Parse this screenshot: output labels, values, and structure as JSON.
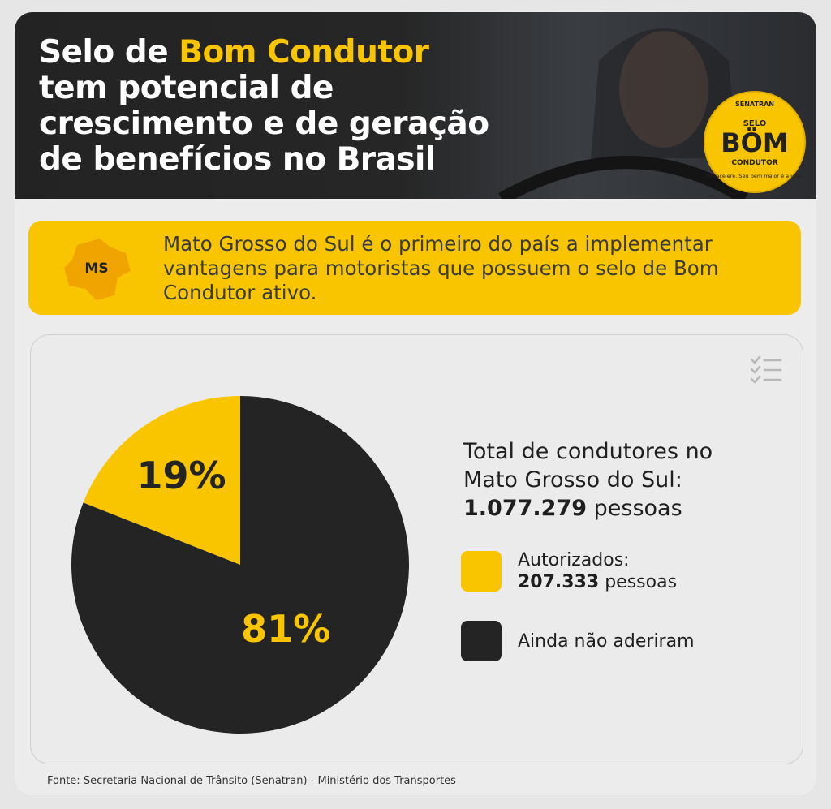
{
  "header": {
    "title": {
      "prefix": "Selo de",
      "highlight": "Bom Condutor",
      "lines": [
        "tem potencial de",
        "crescimento e de geração",
        "de benefícios no Brasil"
      ]
    },
    "badge": {
      "top": "SENATRAN",
      "small": "SELO",
      "big": "BÖM",
      "bottom": "CONDUTOR",
      "motto": "Desacelere. Seu bem maior é a vida."
    }
  },
  "banner": {
    "state": "MS",
    "text": "Mato Grosso do Sul é o primeiro do país a implementar vantagens para motoristas que possuem o selo de Bom Condutor ativo."
  },
  "chart_data": {
    "type": "pie",
    "summary": {
      "lines": [
        "Total de condutores no",
        "Mato Grosso do Sul:"
      ],
      "total": "1.077.279",
      "unit": "pessoas"
    },
    "series": [
      {
        "name": "Autorizados:",
        "color": "#f9c500",
        "values": [
          19
        ],
        "value_labels": [
          "19%"
        ],
        "detail": "207.333",
        "detail_unit": "pessoas"
      },
      {
        "name": "Ainda não aderiram",
        "color": "#242424",
        "values": [
          81
        ],
        "value_labels": [
          "81%"
        ]
      }
    ]
  },
  "source": "Fonte: Secretaria Nacional de Trânsito (Senatran) - Ministério dos Transportes"
}
